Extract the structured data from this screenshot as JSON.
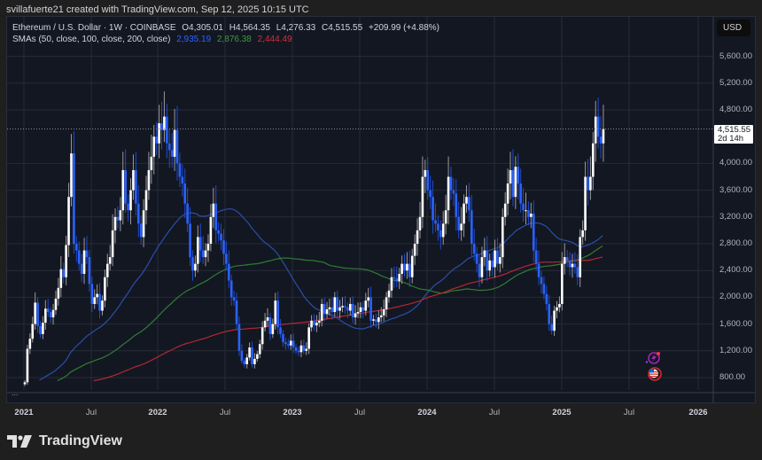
{
  "header": {
    "attribution": "svillafuerte21 created with TradingView.com, Sep 12, 2025 10:15 UTC"
  },
  "legend": {
    "symbol": "Ethereum / U.S. Dollar · 1W · COINBASE",
    "open": "O4,305.01",
    "high": "H4,564.35",
    "low": "L4,276.33",
    "close": "C4,515.55",
    "change": "+209.99 (+4.88%)",
    "sma_label": "SMAs (50, close, 100, close, 200, close)",
    "sma50": "2,935.19",
    "sma100": "2,876.38",
    "sma200": "2,444.49"
  },
  "currency_button": "USD",
  "price_tag": {
    "price": "4,515.55",
    "countdown": "2d 14h"
  },
  "more_indicator": "...",
  "logo": {
    "text": "TradingView"
  },
  "colors": {
    "background": "#131722",
    "up": "#ffffff",
    "down": "#2962ff",
    "sma50": "#2a4fa8",
    "sma100": "#2e7d32",
    "sma200": "#b22833",
    "grid": "#262b38"
  },
  "chart_data": {
    "type": "candlestick",
    "title": "Ethereum / U.S. Dollar · 1W · COINBASE",
    "ylabel": "USD",
    "ylim": [
      750,
      5900
    ],
    "y_ticks": [
      800,
      1200,
      1600,
      2000,
      2400,
      2800,
      3200,
      3600,
      4000,
      4800,
      5200,
      5600
    ],
    "y_tick_labels": [
      "800.00",
      "1,200.00",
      "1,600.00",
      "2,000.00",
      "2,400.00",
      "2,800.00",
      "3,200.00",
      "3,600.00",
      "4,000.00",
      "4,800.00",
      "5,200.00",
      "5,600.00"
    ],
    "x_ticks": [
      "2021",
      "Jul",
      "2022",
      "Jul",
      "2023",
      "Jul",
      "2024",
      "Jul",
      "2025",
      "Jul",
      "2026"
    ],
    "grid": true,
    "last_price": 4515.55,
    "series": [
      {
        "name": "ETH/USD weekly close (approx.)",
        "x_start": "2021-01",
        "step": "1W",
        "values": [
          730,
          1230,
          1380,
          1600,
          1920,
          1570,
          1450,
          1620,
          1830,
          1780,
          1700,
          1810,
          1980,
          2140,
          2420,
          2300,
          2780,
          3500,
          4150,
          2800,
          2700,
          2500,
          2350,
          2700,
          2600,
          2200,
          1900,
          2000,
          2050,
          1800,
          1950,
          2300,
          2500,
          2600,
          3000,
          3200,
          3150,
          3300,
          3900,
          3400,
          3300,
          3600,
          3900,
          3400,
          3100,
          2900,
          3300,
          3600,
          3900,
          4100,
          4400,
          4300,
          4600,
          4500,
          4700,
          4300,
          4200,
          4100,
          4500,
          4000,
          3800,
          3700,
          3400,
          3100,
          2600,
          2400,
          2500,
          2900,
          2700,
          2600,
          2700,
          2800,
          3200,
          3400,
          3000,
          2950,
          2850,
          2650,
          2500,
          2250,
          2000,
          1950,
          1600,
          1200,
          1050,
          1000,
          1100,
          1250,
          1000,
          1080,
          1150,
          1300,
          1550,
          1650,
          1700,
          1450,
          1600,
          1950,
          1550,
          1450,
          1330,
          1300,
          1280,
          1350,
          1250,
          1200,
          1180,
          1280,
          1200,
          1230,
          1550,
          1650,
          1580,
          1620,
          1650,
          1900,
          1750,
          1820,
          1850,
          1780,
          2000,
          1800,
          1850,
          1870,
          1850,
          1800,
          1900,
          1700,
          1760,
          1780,
          1850,
          1800,
          1950,
          2000,
          1650,
          1670,
          1630,
          1700,
          1730,
          1820,
          2000,
          2100,
          2300,
          2280,
          2240,
          2350,
          2500,
          2400,
          2500,
          2300,
          2620,
          2800,
          3000,
          3200,
          3800,
          3900,
          3600,
          3500,
          3150,
          3100,
          3000,
          2900,
          3100,
          3300,
          3800,
          3600,
          3550,
          3200,
          3000,
          3100,
          3400,
          3500,
          3300,
          2800,
          2650,
          2500,
          2300,
          2600,
          2700,
          2400,
          2550,
          2450,
          2700,
          2500,
          2600,
          3200,
          3400,
          3700,
          3900,
          3500,
          3950,
          3700,
          3400,
          3300,
          3300,
          3200,
          3250,
          2700,
          2500,
          2300,
          2200,
          2050,
          1900,
          1600,
          1500,
          1800,
          1850,
          1900,
          2500,
          2600,
          2550,
          2450,
          2500,
          2450,
          2300,
          2900,
          3000,
          3800,
          3600,
          3800,
          4300,
          4700,
          4400,
          4300,
          4515.55
        ]
      },
      {
        "name": "SMA 50",
        "last": 2935.19
      },
      {
        "name": "SMA 100",
        "last": 2876.38
      },
      {
        "name": "SMA 200",
        "last": 2444.49
      }
    ]
  }
}
